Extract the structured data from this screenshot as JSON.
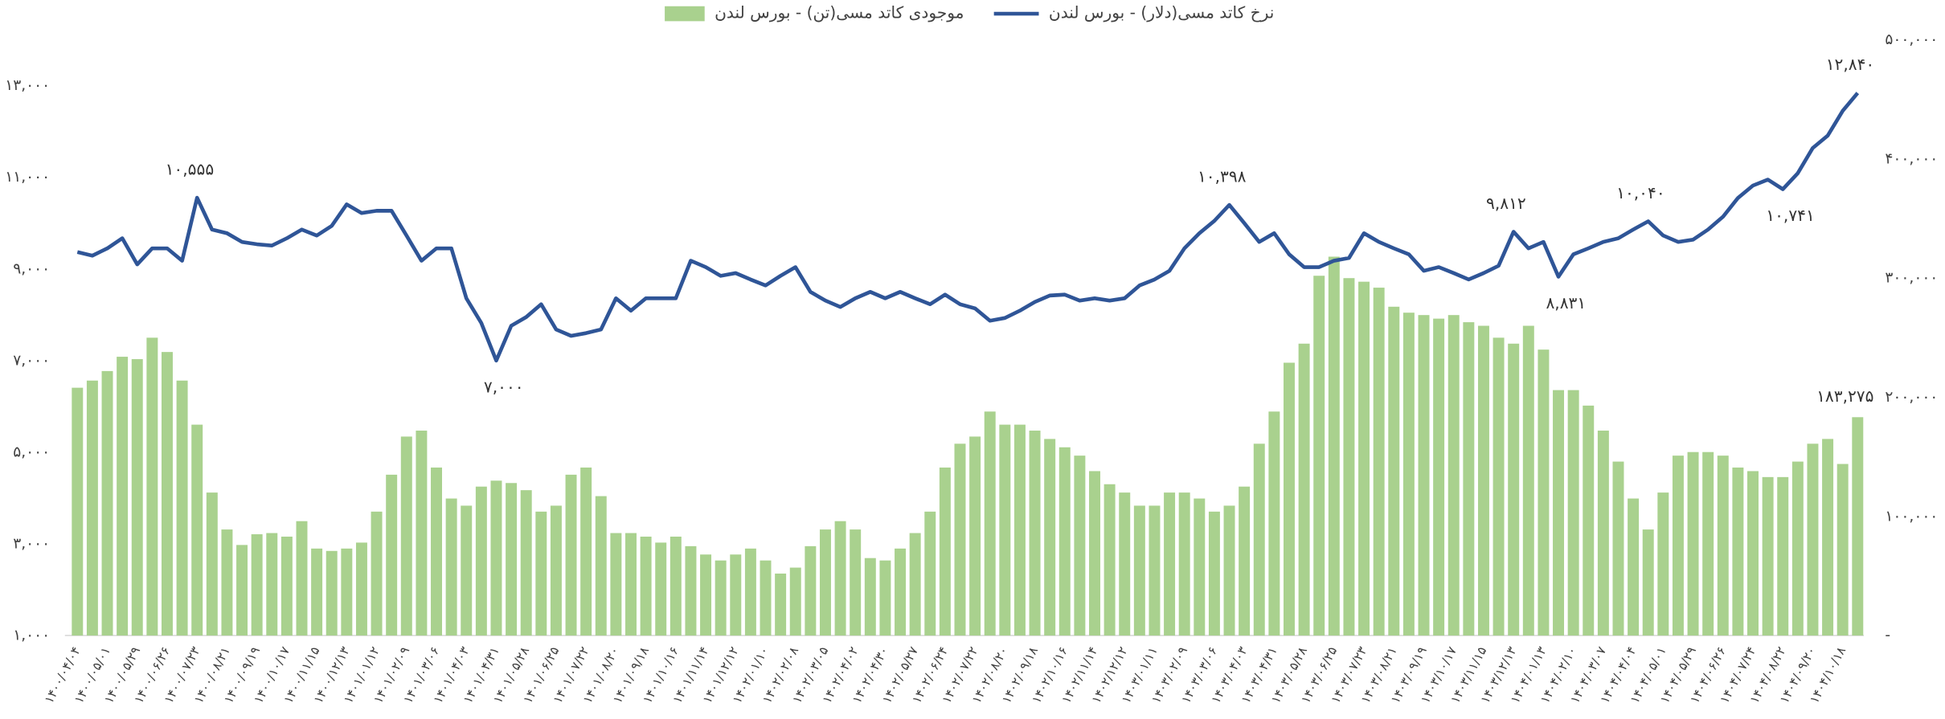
{
  "chart_data": {
    "type": "combo",
    "categories": [
      "۱۴۰۰/۰۴/۰۴",
      null,
      "۱۴۰۰/۰۵/۰۱",
      null,
      "۱۴۰۰/۰۵/۲۹",
      null,
      "۱۴۰۰/۰۶/۲۶",
      null,
      "۱۴۰۰/۰۷/۲۳",
      null,
      "۱۴۰۰/۰۸/۲۱",
      null,
      "۱۴۰۰/۰۹/۱۹",
      null,
      "۱۴۰۰/۱۰/۱۷",
      null,
      "۱۴۰۰/۱۱/۱۵",
      null,
      "۱۴۰۰/۱۲/۱۳",
      null,
      "۱۴۰۱/۰۱/۱۲",
      null,
      "۱۴۰۱/۰۲/۰۹",
      null,
      "۱۴۰۱/۰۳/۰۶",
      null,
      "۱۴۰۱/۰۴/۰۳",
      null,
      "۱۴۰۱/۰۴/۳۱",
      null,
      "۱۴۰۱/۰۵/۲۸",
      null,
      "۱۴۰۱/۰۶/۲۵",
      null,
      "۱۴۰۱/۰۷/۲۲",
      null,
      "۱۴۰۱/۰۸/۲۰",
      null,
      "۱۴۰۱/۰۹/۱۸",
      null,
      "۱۴۰۱/۱۰/۱۶",
      null,
      "۱۴۰۱/۱۱/۱۴",
      null,
      "۱۴۰۱/۱۲/۱۲",
      null,
      "۱۴۰۲/۰۱/۱۰",
      null,
      "۱۴۰۲/۰۲/۰۸",
      null,
      "۱۴۰۲/۰۳/۰۵",
      null,
      "۱۴۰۲/۰۴/۰۲",
      null,
      "۱۴۰۲/۰۴/۳۰",
      null,
      "۱۴۰۲/۰۵/۲۷",
      null,
      "۱۴۰۲/۰۶/۲۴",
      null,
      "۱۴۰۲/۰۷/۲۲",
      null,
      "۱۴۰۲/۰۸/۲۰",
      null,
      "۱۴۰۲/۰۹/۱۸",
      null,
      "۱۴۰۲/۱۰/۱۶",
      null,
      "۱۴۰۲/۱۱/۱۴",
      null,
      "۱۴۰۲/۱۲/۱۲",
      null,
      "۱۴۰۳/۰۱/۱۱",
      null,
      "۱۴۰۳/۰۲/۰۹",
      null,
      "۱۴۰۳/۰۳/۰۶",
      null,
      "۱۴۰۳/۰۴/۰۳",
      null,
      "۱۴۰۳/۰۴/۳۱",
      null,
      "۱۴۰۳/۰۵/۲۸",
      null,
      "۱۴۰۳/۰۶/۲۵",
      null,
      "۱۴۰۳/۰۷/۲۳",
      null,
      "۱۴۰۳/۰۸/۲۱",
      null,
      "۱۴۰۳/۰۹/۱۹",
      null,
      "۱۴۰۳/۱۰/۱۷",
      null,
      "۱۴۰۳/۱۱/۱۵",
      null,
      "۱۴۰۳/۱۲/۱۳",
      null,
      "۱۴۰۴/۰۱/۱۳",
      null,
      "۱۴۰۴/۰۲/۱۰",
      null,
      "۱۴۰۴/۰۳/۰۷",
      null,
      "۱۴۰۴/۰۴/۰۴",
      null,
      "۱۴۰۴/۰۵/۰۱",
      null,
      "۱۴۰۴/۰۵/۲۹",
      null,
      "۱۴۰۴/۰۶/۲۶",
      null,
      "۱۴۰۴/۰۷/۲۴",
      null,
      "۱۴۰۴/۰۸/۲۲",
      null,
      "۱۴۰۴/۰۹/۲۰",
      null,
      "۱۴۰۴/۱۰/۱۸",
      null
    ],
    "series": [
      {
        "name": "موجودی کاتد مسی(تن) - بورس لندن",
        "type": "bar",
        "axis": "y2",
        "color": "#a9d18e",
        "values": [
          208000,
          214000,
          222000,
          234000,
          232000,
          250000,
          238000,
          214000,
          177000,
          120000,
          89000,
          76000,
          85000,
          86000,
          83000,
          96000,
          73000,
          71000,
          73000,
          78000,
          104000,
          135000,
          167000,
          172000,
          141000,
          115000,
          109000,
          125000,
          130000,
          128000,
          122000,
          104000,
          109000,
          135000,
          141000,
          117000,
          86000,
          86000,
          83000,
          78000,
          83000,
          75000,
          68000,
          63000,
          68000,
          73000,
          63000,
          52000,
          57000,
          75000,
          89000,
          96000,
          89000,
          65000,
          63000,
          73000,
          86000,
          104000,
          141000,
          161000,
          167000,
          188000,
          177000,
          177000,
          172000,
          165000,
          158000,
          151000,
          138000,
          127000,
          120000,
          109000,
          109000,
          120000,
          120000,
          115000,
          104000,
          109000,
          125000,
          161000,
          188000,
          229000,
          245000,
          302000,
          318000,
          300000,
          297000,
          292000,
          276000,
          271000,
          269000,
          266000,
          269000,
          263000,
          260000,
          250000,
          245000,
          260000,
          240000,
          206000,
          206000,
          193000,
          172000,
          146000,
          115000,
          89000,
          120000,
          151000,
          154000,
          154000,
          151000,
          141000,
          138000,
          133000,
          133000,
          146000,
          161000,
          165000,
          144000,
          183275
        ],
        "value_labels": [
          null,
          null,
          null,
          null,
          null,
          null,
          null,
          null,
          null,
          null,
          null,
          null,
          null,
          null,
          null,
          null,
          null,
          null,
          null,
          null,
          null,
          null,
          null,
          null,
          null,
          null,
          null,
          null,
          null,
          null,
          null,
          null,
          null,
          null,
          null,
          null,
          null,
          null,
          null,
          null,
          null,
          null,
          null,
          null,
          null,
          null,
          null,
          null,
          null,
          null,
          null,
          null,
          null,
          null,
          null,
          null,
          null,
          null,
          null,
          null,
          null,
          null,
          null,
          null,
          null,
          null,
          null,
          null,
          null,
          null,
          null,
          null,
          null,
          null,
          null,
          null,
          null,
          null,
          null,
          null,
          null,
          null,
          null,
          null,
          null,
          null,
          null,
          null,
          null,
          null,
          null,
          null,
          null,
          null,
          null,
          null,
          null,
          null,
          null,
          null,
          null,
          null,
          null,
          null,
          null,
          null,
          null,
          null,
          null,
          null,
          null,
          null,
          null,
          null,
          null,
          null,
          null,
          null,
          null,
          "۱۸۳,۲۷۵"
        ]
      },
      {
        "name": "نرخ کاتد مسی(دلار) - بورس لندن",
        "type": "line",
        "axis": "y",
        "color": "#2f5597",
        "values": [
          9370,
          9290,
          9450,
          9670,
          9100,
          9450,
          9450,
          9180,
          10555,
          9860,
          9780,
          9590,
          9540,
          9510,
          9670,
          9860,
          9730,
          9940,
          10410,
          10220,
          10270,
          10270,
          9730,
          9180,
          9450,
          9450,
          8360,
          7820,
          7000,
          7760,
          7950,
          8230,
          7680,
          7540,
          7600,
          7680,
          8360,
          8090,
          8360,
          8360,
          8360,
          9180,
          9040,
          8850,
          8910,
          8770,
          8640,
          8850,
          9040,
          8500,
          8310,
          8170,
          8360,
          8500,
          8360,
          8500,
          8360,
          8230,
          8440,
          8230,
          8140,
          7870,
          7930,
          8090,
          8280,
          8420,
          8440,
          8310,
          8360,
          8310,
          8360,
          8640,
          8770,
          8960,
          9450,
          9780,
          10050,
          10398,
          10000,
          9590,
          9780,
          9320,
          9040,
          9040,
          9180,
          9240,
          9780,
          9590,
          9450,
          9320,
          8960,
          9040,
          8910,
          8770,
          8910,
          9070,
          9812,
          9450,
          9590,
          8831,
          9320,
          9450,
          9590,
          9670,
          9860,
          10040,
          9730,
          9590,
          9640,
          9860,
          10140,
          10550,
          10820,
          10950,
          10741,
          11090,
          11640,
          11910,
          12450,
          12840
        ],
        "value_labels": [
          null,
          null,
          null,
          null,
          null,
          null,
          null,
          null,
          "۱۰,۵۵۵",
          null,
          null,
          null,
          null,
          null,
          null,
          null,
          null,
          null,
          null,
          null,
          null,
          null,
          null,
          null,
          null,
          null,
          null,
          null,
          "۷,۰۰۰",
          null,
          null,
          null,
          null,
          null,
          null,
          null,
          null,
          null,
          null,
          null,
          null,
          null,
          null,
          null,
          null,
          null,
          null,
          null,
          null,
          null,
          null,
          null,
          null,
          null,
          null,
          null,
          null,
          null,
          null,
          null,
          null,
          null,
          null,
          null,
          null,
          null,
          null,
          null,
          null,
          null,
          null,
          null,
          null,
          null,
          null,
          null,
          null,
          "۱۰,۳۹۸",
          null,
          null,
          null,
          null,
          null,
          null,
          null,
          null,
          null,
          null,
          null,
          null,
          null,
          null,
          null,
          null,
          null,
          null,
          "۹,۸۱۲",
          null,
          null,
          "۸,۸۳۱",
          null,
          null,
          null,
          null,
          null,
          "۱۰,۰۴۰",
          null,
          null,
          null,
          null,
          null,
          null,
          null,
          null,
          "۱۰,۷۴۱",
          null,
          null,
          null,
          null,
          "۱۲,۸۴۰"
        ]
      }
    ],
    "ylim": [
      1000,
      14000
    ],
    "yticks": [
      {
        "value": 1000,
        "label": "۱,۰۰۰"
      },
      {
        "value": 3000,
        "label": "۳,۰۰۰"
      },
      {
        "value": 5000,
        "label": "۵,۰۰۰"
      },
      {
        "value": 7000,
        "label": "۷,۰۰۰"
      },
      {
        "value": 9000,
        "label": "۹,۰۰۰"
      },
      {
        "value": 11000,
        "label": "۱۱,۰۰۰"
      },
      {
        "value": 13000,
        "label": "۱۳,۰۰۰"
      }
    ],
    "y2lim": [
      0,
      500000
    ],
    "y2ticks": [
      {
        "value": 0,
        "label": "-"
      },
      {
        "value": 100000,
        "label": "۱۰۰,۰۰۰"
      },
      {
        "value": 200000,
        "label": "۲۰۰,۰۰۰"
      },
      {
        "value": 300000,
        "label": "۳۰۰,۰۰۰"
      },
      {
        "value": 400000,
        "label": "۴۰۰,۰۰۰"
      },
      {
        "value": 500000,
        "label": "۵۰۰,۰۰۰"
      }
    ],
    "grid": false,
    "legend": "top"
  }
}
